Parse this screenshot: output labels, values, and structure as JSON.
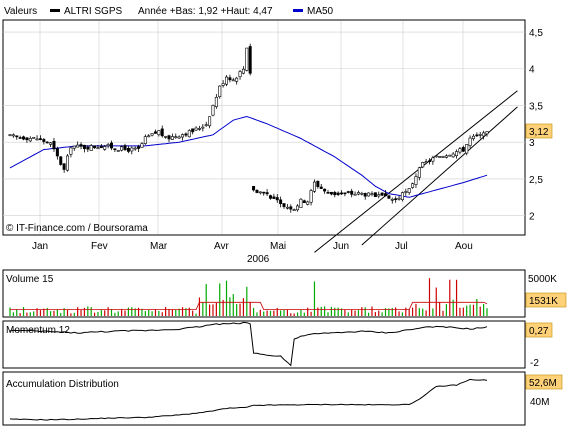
{
  "chart_data": [
    {
      "type": "candlestick",
      "legend": {
        "label": "Valeurs",
        "symbol_label": "ALTRI SGPS",
        "stats": "Année +Bas: 1,92 +Haut: 4,47",
        "ma_label": "MA50"
      },
      "year_label": "2006",
      "watermark": "© IT-Finance.com / Boursorama",
      "xlabels": [
        "Jan",
        "Fev",
        "Mar",
        "Avr",
        "Mai",
        "Jun",
        "Jul",
        "Aou"
      ],
      "ytick_labels": [
        "4,5",
        "4",
        "3,5",
        "3",
        "2,5",
        "2"
      ],
      "ytick_values": [
        4.5,
        4.0,
        3.5,
        3.0,
        2.5,
        2.0
      ],
      "ylim": [
        1.75,
        4.65
      ],
      "last_label": "3,12",
      "last_value": 3.12,
      "ma50_color": "#0000cc",
      "price_keypoints": [
        [
          0,
          3.08
        ],
        [
          8,
          3.05
        ],
        [
          12,
          2.98
        ],
        [
          14,
          2.8
        ],
        [
          16,
          2.62
        ],
        [
          18,
          2.95
        ],
        [
          22,
          2.93
        ],
        [
          28,
          2.95
        ],
        [
          34,
          2.9
        ],
        [
          38,
          2.9
        ],
        [
          40,
          3.05
        ],
        [
          44,
          3.15
        ],
        [
          46,
          3.05
        ],
        [
          50,
          3.1
        ],
        [
          54,
          3.15
        ],
        [
          58,
          3.25
        ],
        [
          60,
          3.5
        ],
        [
          62,
          3.75
        ],
        [
          64,
          3.9
        ],
        [
          66,
          3.85
        ],
        [
          68,
          3.95
        ],
        [
          69,
          4.0
        ],
        [
          70,
          4.3
        ],
        [
          71,
          3.95
        ],
        [
          72,
          2.35
        ],
        [
          76,
          2.3
        ],
        [
          80,
          2.15
        ],
        [
          84,
          2.1
        ],
        [
          86,
          2.2
        ],
        [
          88,
          2.2
        ],
        [
          90,
          2.45
        ],
        [
          94,
          2.3
        ],
        [
          98,
          2.3
        ],
        [
          104,
          2.3
        ],
        [
          110,
          2.25
        ],
        [
          114,
          2.22
        ],
        [
          118,
          2.35
        ],
        [
          120,
          2.55
        ],
        [
          122,
          2.7
        ],
        [
          126,
          2.8
        ],
        [
          130,
          2.85
        ],
        [
          134,
          2.9
        ],
        [
          136,
          3.05
        ],
        [
          140,
          3.1
        ],
        [
          141,
          3.12
        ]
      ],
      "ma50_keypoints": [
        [
          0,
          2.65
        ],
        [
          10,
          2.9
        ],
        [
          20,
          2.95
        ],
        [
          30,
          2.95
        ],
        [
          40,
          2.95
        ],
        [
          50,
          3.0
        ],
        [
          60,
          3.1
        ],
        [
          66,
          3.3
        ],
        [
          70,
          3.35
        ],
        [
          76,
          3.25
        ],
        [
          86,
          3.05
        ],
        [
          96,
          2.8
        ],
        [
          104,
          2.55
        ],
        [
          108,
          2.4
        ],
        [
          112,
          2.3
        ],
        [
          118,
          2.25
        ],
        [
          126,
          2.35
        ],
        [
          134,
          2.45
        ],
        [
          141,
          2.55
        ]
      ],
      "channel_lines": [
        {
          "from": [
            90,
            1.5
          ],
          "to": [
            150,
            3.7
          ]
        },
        {
          "from": [
            104,
            1.6
          ],
          "to": [
            150,
            3.48
          ]
        }
      ]
    },
    {
      "type": "bar",
      "title": "Volume 15",
      "ytick_labels": [
        "5000K"
      ],
      "ytick_values": [
        5000
      ],
      "ylim": [
        0,
        5600
      ],
      "last_label": "1531K",
      "last_value": 1531,
      "bar_colors": [
        "#cc0000",
        "#00aa00"
      ],
      "avg_color": "#cc0000"
    },
    {
      "type": "line",
      "title": "Momentum 12",
      "ytick_labels": [
        "0,27",
        "-2"
      ],
      "ytick_values": [
        0.27,
        -2
      ],
      "ylim": [
        -2.3,
        0.6
      ],
      "last_label": "0,27",
      "last_value": 0.27
    },
    {
      "type": "area",
      "title": "Accumulation Distribution",
      "ytick_labels": [
        "52,6M",
        "40M"
      ],
      "ytick_values": [
        52.6,
        40
      ],
      "ylim": [
        38,
        55
      ],
      "last_label": "52,6M",
      "last_value": 52.6
    }
  ]
}
